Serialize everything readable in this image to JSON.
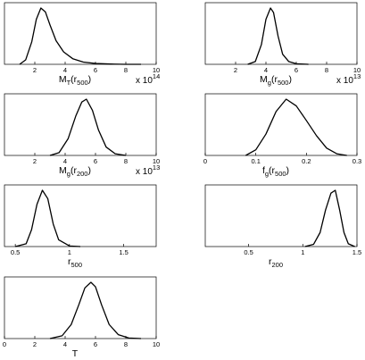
{
  "chart_data": [
    {
      "type": "line",
      "xlabel": "M_T(r_500)",
      "xlabel_main": "M",
      "xlabel_sub": "T",
      "xlabel_arg": "(r",
      "xlabel_arg_sub": "500",
      "xlabel_close": ")",
      "xlim": [
        0,
        10
      ],
      "xticks": [
        "2",
        "4",
        "6",
        "8",
        "10"
      ],
      "multiplier_base": "x 10",
      "multiplier_exp": "14",
      "series": [
        {
          "x": [
            1.0,
            1.4,
            1.8,
            2.1,
            2.4,
            2.7,
            3.0,
            3.4,
            3.9,
            4.5,
            5.2,
            6.0,
            7.0,
            8.0,
            9.0
          ],
          "y": [
            0.0,
            0.08,
            0.4,
            0.8,
            1.0,
            0.93,
            0.7,
            0.42,
            0.22,
            0.1,
            0.04,
            0.015,
            0.005,
            0.0,
            0.0
          ]
        }
      ]
    },
    {
      "type": "line",
      "xlabel": "M_g(r_500)",
      "xlabel_main": "M",
      "xlabel_sub": "g",
      "xlabel_arg": "(r",
      "xlabel_arg_sub": "500",
      "xlabel_close": ")",
      "xlim": [
        0,
        10
      ],
      "xticks": [
        "2",
        "4",
        "6",
        "8",
        "10"
      ],
      "multiplier_base": "x 10",
      "multiplier_exp": "13",
      "series": [
        {
          "x": [
            2.8,
            3.3,
            3.7,
            4.0,
            4.3,
            4.5,
            4.8,
            5.1,
            5.5,
            6.0,
            6.8
          ],
          "y": [
            0.0,
            0.05,
            0.35,
            0.8,
            1.0,
            0.92,
            0.5,
            0.18,
            0.05,
            0.01,
            0.0
          ]
        }
      ]
    },
    {
      "type": "line",
      "xlabel": "M_g(r_200)",
      "xlabel_main": "M",
      "xlabel_sub": "g",
      "xlabel_arg": "(r",
      "xlabel_arg_sub": "200",
      "xlabel_close": ")",
      "xlim": [
        0,
        10
      ],
      "xticks": [
        "2",
        "4",
        "6",
        "8",
        "10"
      ],
      "multiplier_base": "x 10",
      "multiplier_exp": "13",
      "series": [
        {
          "x": [
            3.0,
            3.6,
            4.2,
            4.7,
            5.1,
            5.4,
            5.8,
            6.2,
            6.7,
            7.3,
            8.0
          ],
          "y": [
            0.0,
            0.05,
            0.3,
            0.7,
            0.95,
            1.0,
            0.8,
            0.45,
            0.15,
            0.03,
            0.0
          ]
        }
      ]
    },
    {
      "type": "line",
      "xlabel": "f_g(r_500)",
      "xlabel_main": "f",
      "xlabel_sub": "g",
      "xlabel_arg": "(r",
      "xlabel_arg_sub": "500",
      "xlabel_close": ")",
      "xlim": [
        0,
        0.3
      ],
      "xticks": [
        "0",
        "0.1",
        "0.2",
        "0.3"
      ],
      "multiplier_base": "",
      "multiplier_exp": "",
      "series": [
        {
          "x": [
            0.08,
            0.1,
            0.12,
            0.14,
            0.16,
            0.18,
            0.2,
            0.22,
            0.24,
            0.26,
            0.28
          ],
          "y": [
            0.0,
            0.1,
            0.38,
            0.78,
            1.0,
            0.88,
            0.62,
            0.35,
            0.13,
            0.03,
            0.0
          ]
        }
      ]
    },
    {
      "type": "line",
      "xlabel": "r_500",
      "xlabel_main": "r",
      "xlabel_sub": "500",
      "xlabel_arg": "",
      "xlabel_arg_sub": "",
      "xlabel_close": "",
      "xlim": [
        0.4,
        1.8
      ],
      "xticks": [
        "0.5",
        "1",
        "1.5"
      ],
      "multiplier_base": "",
      "multiplier_exp": "",
      "series": [
        {
          "x": [
            0.5,
            0.6,
            0.65,
            0.7,
            0.75,
            0.8,
            0.85,
            0.9,
            1.0,
            1.1
          ],
          "y": [
            0.0,
            0.05,
            0.3,
            0.75,
            1.0,
            0.85,
            0.4,
            0.12,
            0.01,
            0.0
          ]
        }
      ]
    },
    {
      "type": "line",
      "xlabel": "r_200",
      "xlabel_main": "r",
      "xlabel_sub": "200",
      "xlabel_arg": "",
      "xlabel_arg_sub": "",
      "xlabel_close": "",
      "xlim": [
        0.1,
        1.5
      ],
      "xticks": [
        "0.5",
        "1",
        "1.5"
      ],
      "multiplier_base": "",
      "multiplier_exp": "",
      "series": [
        {
          "x": [
            1.02,
            1.1,
            1.16,
            1.21,
            1.26,
            1.3,
            1.34,
            1.38,
            1.42,
            1.48
          ],
          "y": [
            0.0,
            0.04,
            0.25,
            0.65,
            0.95,
            1.0,
            0.65,
            0.25,
            0.05,
            0.0
          ]
        }
      ]
    },
    {
      "type": "line",
      "xlabel": "T",
      "xlabel_main": "T",
      "xlabel_sub": "",
      "xlabel_arg": "",
      "xlabel_arg_sub": "",
      "xlabel_close": "",
      "xlim": [
        0,
        10
      ],
      "xticks": [
        "0",
        "2",
        "4",
        "6",
        "8",
        "10"
      ],
      "multiplier_base": "",
      "multiplier_exp": "",
      "series": [
        {
          "x": [
            3.0,
            3.8,
            4.4,
            4.9,
            5.3,
            5.7,
            6.0,
            6.4,
            6.9,
            7.5,
            8.2,
            9.0
          ],
          "y": [
            0.0,
            0.05,
            0.25,
            0.6,
            0.9,
            1.0,
            0.92,
            0.6,
            0.25,
            0.07,
            0.01,
            0.0
          ]
        }
      ]
    }
  ]
}
